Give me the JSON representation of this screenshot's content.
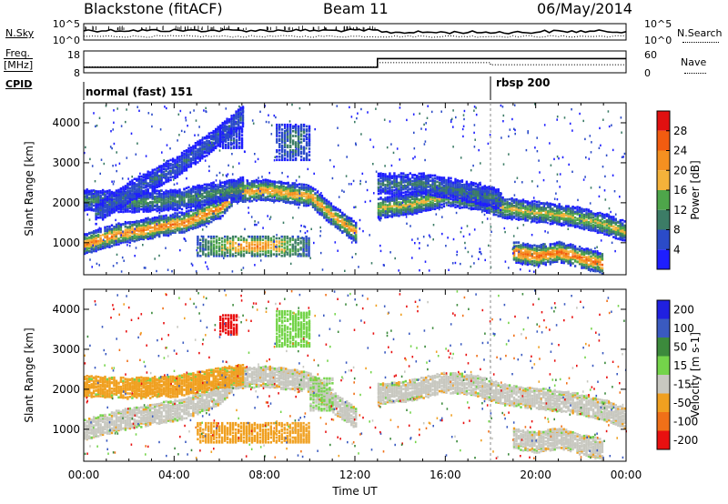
{
  "header": {
    "radar": "Blackstone (fitACF)",
    "beam": "Beam 11",
    "date": "06/May/2014"
  },
  "side_labels": {
    "nsky": "N.Sky",
    "nsearch": "N.Search",
    "freq_line1": "Freq.",
    "freq_line2": "[MHz]",
    "nave": "Nave",
    "cpid": "CPID"
  },
  "cpid_modes": [
    {
      "label": "normal (fast) 151"
    },
    {
      "label": "rbsp 200"
    }
  ],
  "colors": {
    "power": [
      "#1e1eff",
      "#2b4bc8",
      "#3c7c66",
      "#4ea64a",
      "#f4b23a",
      "#f59020",
      "#f25c10",
      "#e01010"
    ],
    "velocity": [
      "#2020e0",
      "#3a5ac0",
      "#3c8a3c",
      "#74d44a",
      "#c8c8c0",
      "#f0a020",
      "#f07018",
      "#e81010"
    ],
    "grey_scatter": "#c8c8c0"
  },
  "chart_data": [
    {
      "type": "line",
      "name": "noise",
      "left_axis": {
        "label": "N.Sky",
        "ticks": [
          "10^5",
          "10^0"
        ]
      },
      "right_axis": {
        "label": "N.Search",
        "ticks": [
          "10^5",
          "10^0"
        ]
      }
    },
    {
      "type": "line",
      "name": "frequency-nave",
      "left_axis": {
        "label": "Freq. [MHz]",
        "ticks": [
          "18",
          "8"
        ],
        "ylim": [
          8,
          18
        ]
      },
      "right_axis": {
        "label": "Nave",
        "ticks": [
          "60",
          "0"
        ],
        "ylim": [
          0,
          60
        ]
      },
      "series": [
        {
          "name": "Freq.",
          "x": [
            0,
            13.0,
            13.0,
            24
          ],
          "y": [
            10.5,
            10.5,
            14.5,
            14.5
          ]
        },
        {
          "name": "Nave",
          "x": [
            0,
            13.0,
            13.0,
            18.0,
            18.0,
            24
          ],
          "y": [
            16,
            16,
            28,
            28,
            22,
            22
          ]
        }
      ]
    },
    {
      "type": "heatmap",
      "name": "power",
      "ylabel": "Slant Range [km]",
      "xlabel": "Time UT",
      "xticks": [
        "00:00",
        "04:00",
        "08:00",
        "12:00",
        "16:00",
        "20:00",
        "00:00"
      ],
      "yticks": [
        "1000",
        "2000",
        "3000",
        "4000"
      ],
      "colorbar": {
        "label": "Power [dB]",
        "ticks": [
          "4",
          "8",
          "12",
          "16",
          "20",
          "24",
          "28"
        ]
      },
      "bands": [
        {
          "x": [
            0.0,
            1.5,
            3.0,
            4.5,
            6.0,
            6.5
          ],
          "y": [
            1000,
            1250,
            1400,
            1550,
            1900,
            2200
          ],
          "v": 24
        },
        {
          "x": [
            6.5,
            8.0,
            10.0,
            11.0,
            12.0
          ],
          "y": [
            2300,
            2350,
            2200,
            1700,
            1300
          ],
          "v": 22
        },
        {
          "x": [
            0.0,
            2.0,
            4.0,
            5.5,
            7.0
          ],
          "y": [
            2100,
            2050,
            2100,
            2250,
            2400
          ],
          "v": 12
        },
        {
          "x": [
            0.5,
            2.0,
            4.0,
            5.5,
            7.0
          ],
          "y": [
            1750,
            2300,
            2900,
            3500,
            4200
          ],
          "v": 8
        },
        {
          "x": [
            13.0,
            14.5,
            16.0,
            17.5,
            18.5,
            20.0,
            21.5,
            23.0,
            24.0
          ],
          "y": [
            1900,
            2000,
            2200,
            2100,
            1900,
            1800,
            1700,
            1500,
            1300
          ],
          "v": 18
        },
        {
          "x": [
            13.0,
            15.0,
            17.0,
            18.5
          ],
          "y": [
            2500,
            2500,
            2300,
            2100
          ],
          "v": 10
        },
        {
          "x": [
            19.0,
            20.0,
            21.0,
            22.0,
            23.0
          ],
          "y": [
            800,
            700,
            800,
            650,
            500
          ],
          "v": 26
        }
      ],
      "patches": [
        {
          "x": [
            5.0,
            10.0
          ],
          "y": [
            700,
            1200
          ],
          "v": 24
        },
        {
          "x": [
            8.5,
            10.0
          ],
          "y": [
            3100,
            4000
          ],
          "v": 12
        },
        {
          "x": [
            6.0,
            7.0
          ],
          "y": [
            3400,
            3900
          ],
          "v": 8
        }
      ]
    },
    {
      "type": "heatmap",
      "name": "velocity",
      "ylabel": "Slant Range [km]",
      "xlabel": "Time UT",
      "xticks": [
        "00:00",
        "04:00",
        "08:00",
        "12:00",
        "16:00",
        "20:00",
        "00:00"
      ],
      "yticks": [
        "1000",
        "2000",
        "3000",
        "4000"
      ],
      "colorbar": {
        "label": "Velocity [m s-1]",
        "ticks": [
          "200",
          "100",
          "50",
          "15",
          "-15",
          "-50",
          "-100",
          "-200"
        ]
      },
      "bands": [
        {
          "x": [
            0.0,
            1.5,
            3.0,
            4.5,
            6.0,
            6.5
          ],
          "y": [
            1000,
            1250,
            1400,
            1550,
            1900,
            2200
          ],
          "v": 0
        },
        {
          "x": [
            6.5,
            8.0,
            10.0,
            11.0,
            12.0
          ],
          "y": [
            2300,
            2350,
            2200,
            1700,
            1300
          ],
          "v": 0
        },
        {
          "x": [
            0.0,
            2.0,
            4.0,
            5.5,
            7.0
          ],
          "y": [
            2100,
            2050,
            2100,
            2250,
            2400
          ],
          "v": -40
        },
        {
          "x": [
            13.0,
            14.5,
            16.0,
            17.5,
            18.5,
            20.0,
            21.5,
            23.0,
            24.0
          ],
          "y": [
            1900,
            2000,
            2200,
            2100,
            1900,
            1800,
            1700,
            1500,
            1300
          ],
          "v": 0
        },
        {
          "x": [
            19.0,
            20.0,
            21.0,
            22.0,
            23.0
          ],
          "y": [
            800,
            700,
            800,
            650,
            500
          ],
          "v": 0
        }
      ],
      "patches": [
        {
          "x": [
            5.0,
            10.0
          ],
          "y": [
            700,
            1200
          ],
          "v": -40
        },
        {
          "x": [
            8.5,
            10.0
          ],
          "y": [
            3100,
            4000
          ],
          "v": 30
        },
        {
          "x": [
            6.0,
            6.8
          ],
          "y": [
            3400,
            3900
          ],
          "v": -200
        },
        {
          "x": [
            10.0,
            11.0
          ],
          "y": [
            1500,
            2300
          ],
          "v": 15
        }
      ]
    }
  ]
}
